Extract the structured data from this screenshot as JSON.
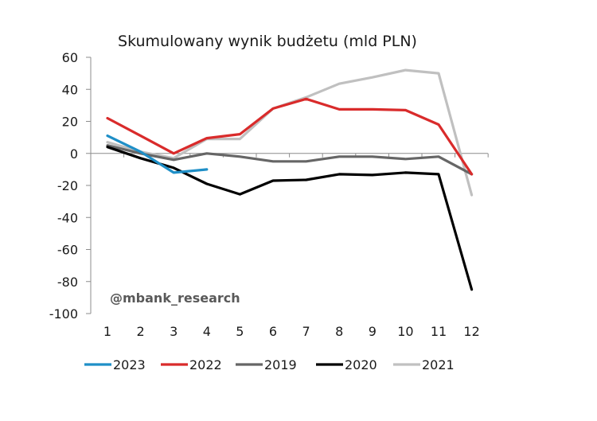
{
  "chart_data": {
    "type": "line",
    "title": "Skumulowany wynik budżetu (mld PLN)",
    "xlabel": "",
    "ylabel": "",
    "x": [
      1,
      2,
      3,
      4,
      5,
      6,
      7,
      8,
      9,
      10,
      11,
      12
    ],
    "x_tick_labels": [
      "1",
      "2",
      "3",
      "4",
      "5",
      "6",
      "7",
      "8",
      "9",
      "10",
      "11",
      "12"
    ],
    "ylim": [
      -100,
      60
    ],
    "y_ticks": [
      60,
      40,
      20,
      0,
      -20,
      -40,
      -60,
      -80,
      -100
    ],
    "y_tick_labels": [
      "60",
      "40",
      "20",
      "0",
      "-20",
      "-40",
      "-60",
      "-80",
      "-100"
    ],
    "grid": false,
    "legend_position": "bottom",
    "watermark": "@mbank_research",
    "series": [
      {
        "name": "2023",
        "color": "#1f8fc7",
        "values": [
          11,
          1,
          -12,
          -10,
          null,
          null,
          null,
          null,
          null,
          null,
          null,
          null
        ]
      },
      {
        "name": "2022",
        "color": "#d92b2b",
        "values": [
          22,
          11,
          0,
          9.5,
          12,
          28,
          34,
          27.5,
          27.5,
          27,
          18,
          -13
        ]
      },
      {
        "name": "2019",
        "color": "#666666",
        "values": [
          5,
          0,
          -4,
          0,
          -2,
          -5,
          -5,
          -2,
          -2,
          -3.5,
          -2,
          -13
        ]
      },
      {
        "name": "2020",
        "color": "#000000",
        "values": [
          4,
          -3,
          -9,
          -19,
          -25.5,
          -17,
          -16.5,
          -13,
          -13.5,
          -12,
          -13,
          -85
        ]
      },
      {
        "name": "2021",
        "color": "#c0c0c0",
        "values": [
          7,
          1,
          -3,
          9,
          9,
          28,
          35,
          43.5,
          47.5,
          52,
          50,
          -26
        ]
      }
    ]
  }
}
